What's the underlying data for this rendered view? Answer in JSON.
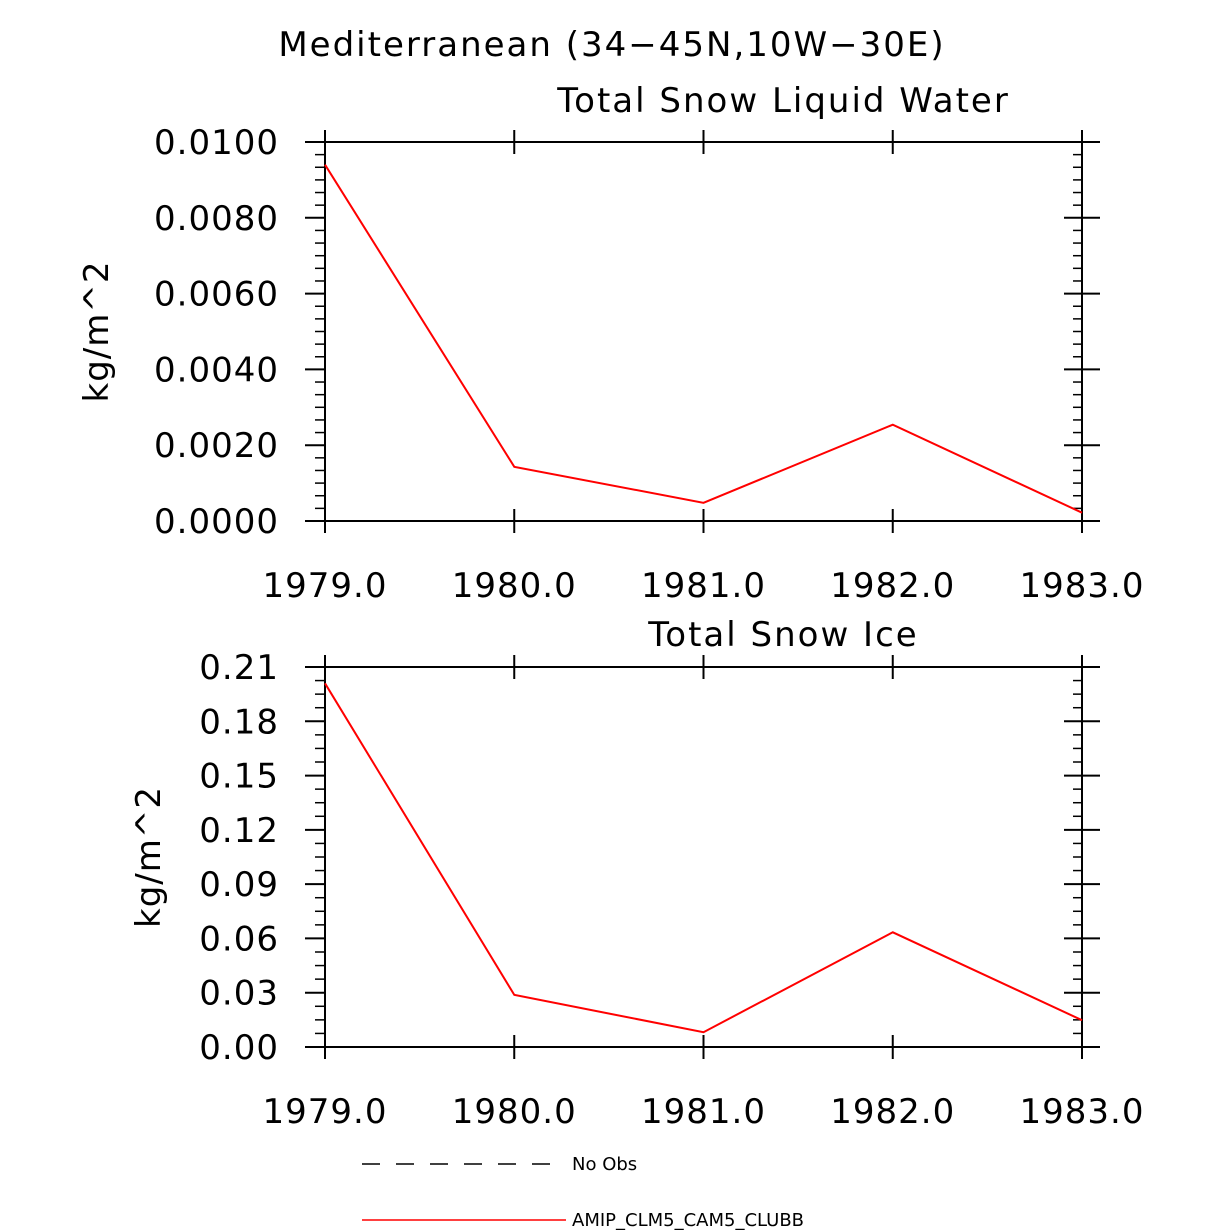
{
  "figure_title": "Mediterranean (34−45N,10W−30E)",
  "chart_data": [
    {
      "type": "line",
      "title": "Total Snow Liquid Water",
      "xlabel": "",
      "ylabel": "kg/m^2",
      "xlim": [
        1979.0,
        1983.0
      ],
      "ylim": [
        0.0,
        0.01
      ],
      "x_ticks": [
        "1979.0",
        "1980.0",
        "1981.0",
        "1982.0",
        "1983.0"
      ],
      "x_tick_values": [
        1979.0,
        1980.0,
        1981.0,
        1982.0,
        1983.0
      ],
      "y_ticks": [
        "0.0000",
        "0.0020",
        "0.0040",
        "0.0060",
        "0.0080",
        "0.0100"
      ],
      "y_tick_values": [
        0.0,
        0.002,
        0.004,
        0.006,
        0.008,
        0.01
      ],
      "grid": false,
      "series": [
        {
          "name": "AMIP_CLM5_CAM5_CLUBB",
          "color": "#ff0000",
          "x": [
            1979.0,
            1980.0,
            1981.0,
            1982.0,
            1983.0
          ],
          "values": [
            0.0094,
            0.00143,
            0.00048,
            0.00254,
            0.00022
          ]
        }
      ]
    },
    {
      "type": "line",
      "title": "Total Snow Ice",
      "xlabel": "",
      "ylabel": "kg/m^2",
      "xlim": [
        1979.0,
        1983.0
      ],
      "ylim": [
        0.0,
        0.21
      ],
      "x_ticks": [
        "1979.0",
        "1980.0",
        "1981.0",
        "1982.0",
        "1983.0"
      ],
      "x_tick_values": [
        1979.0,
        1980.0,
        1981.0,
        1982.0,
        1983.0
      ],
      "y_ticks": [
        "0.00",
        "0.03",
        "0.06",
        "0.09",
        "0.12",
        "0.15",
        "0.18",
        "0.21"
      ],
      "y_tick_values": [
        0.0,
        0.03,
        0.06,
        0.09,
        0.12,
        0.15,
        0.18,
        0.21
      ],
      "grid": false,
      "series": [
        {
          "name": "AMIP_CLM5_CAM5_CLUBB",
          "color": "#ff0000",
          "x": [
            1979.0,
            1980.0,
            1981.0,
            1982.0,
            1983.0
          ],
          "values": [
            0.201,
            0.0288,
            0.0082,
            0.0634,
            0.0148
          ]
        }
      ]
    }
  ],
  "legend": {
    "placement": "bottom",
    "entries": [
      {
        "label": "No Obs",
        "color": "#000000",
        "style": "dashed"
      },
      {
        "label": "AMIP_CLM5_CAM5_CLUBB",
        "color": "#ff0000",
        "style": "solid"
      }
    ]
  }
}
